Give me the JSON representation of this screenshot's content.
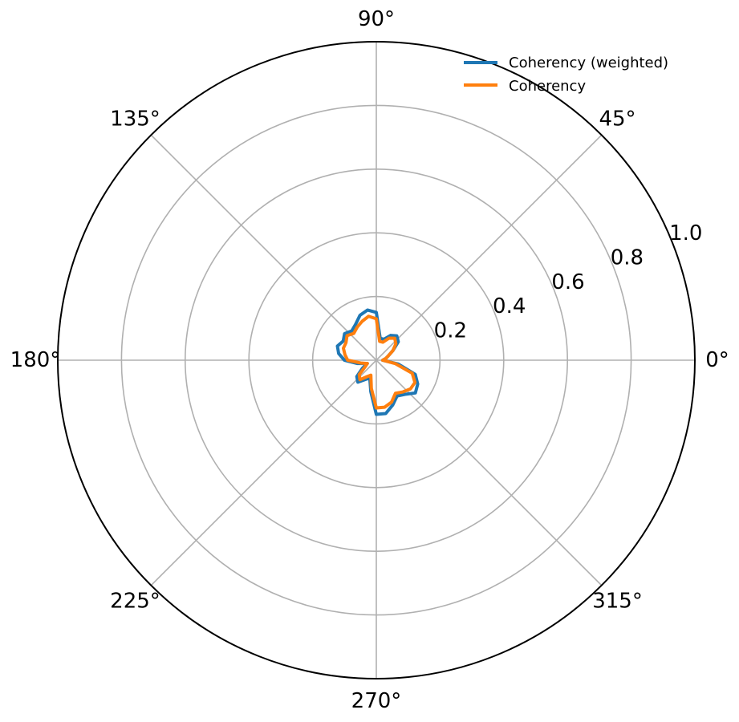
{
  "chart_data": {
    "type": "line",
    "projection": "polar",
    "title": "",
    "theta_unit": "degrees",
    "theta_ticks": [
      "0°",
      "45°",
      "90°",
      "135°",
      "180°",
      "225°",
      "270°",
      "315°"
    ],
    "theta_tick_values": [
      0,
      45,
      90,
      135,
      180,
      225,
      270,
      315
    ],
    "r_ticks": [
      "0.2",
      "0.4",
      "0.6",
      "0.8",
      "1.0"
    ],
    "r_tick_values": [
      0.2,
      0.4,
      0.6,
      0.8,
      1.0
    ],
    "rlim": [
      0,
      1.0
    ],
    "grid": true,
    "legend_position": "top-right",
    "theta": [
      0,
      10,
      20,
      30,
      40,
      50,
      60,
      70,
      80,
      90,
      100,
      110,
      120,
      130,
      140,
      150,
      160,
      170,
      180,
      190,
      200,
      210,
      220,
      230,
      240,
      250,
      260,
      270,
      280,
      290,
      300,
      310,
      320,
      330,
      340,
      350
    ],
    "series": [
      {
        "name": "Coherency (weighted)",
        "color": "#1f77b4",
        "values": [
          0.02,
          0.03,
          0.04,
          0.06,
          0.09,
          0.1,
          0.09,
          0.07,
          0.07,
          0.15,
          0.16,
          0.15,
          0.13,
          0.12,
          0.13,
          0.12,
          0.13,
          0.12,
          0.1,
          0.06,
          0.03,
          0.05,
          0.08,
          0.09,
          0.07,
          0.06,
          0.1,
          0.17,
          0.17,
          0.15,
          0.13,
          0.14,
          0.16,
          0.15,
          0.13,
          0.07
        ]
      },
      {
        "name": "Coherency",
        "color": "#ff7f0e",
        "values": [
          0.02,
          0.03,
          0.04,
          0.06,
          0.08,
          0.09,
          0.08,
          0.06,
          0.06,
          0.13,
          0.14,
          0.13,
          0.12,
          0.11,
          0.12,
          0.11,
          0.11,
          0.1,
          0.09,
          0.05,
          0.03,
          0.04,
          0.07,
          0.08,
          0.06,
          0.05,
          0.09,
          0.15,
          0.15,
          0.14,
          0.12,
          0.13,
          0.14,
          0.14,
          0.12,
          0.06
        ]
      }
    ]
  }
}
